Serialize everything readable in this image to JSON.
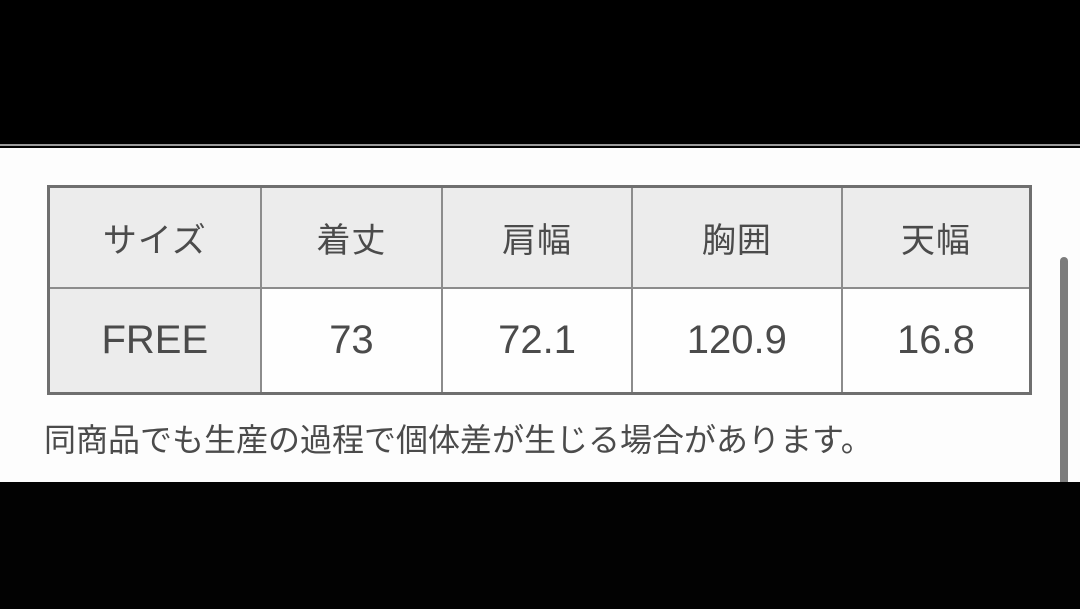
{
  "size_table": {
    "headers": [
      "サイズ",
      "着丈",
      "肩幅",
      "胸囲",
      "天幅"
    ],
    "rows": [
      [
        "FREE",
        "73",
        "72.1",
        "120.9",
        "16.8"
      ]
    ]
  },
  "note": {
    "text": "同商品でも生産の過程で個体差が生じる場合があります。"
  },
  "colors": {
    "letterbox": "#000000",
    "panel_background": "#fdfdfd",
    "header_cell_background": "#ececec",
    "table_border": "#8c8c8c",
    "table_outer_border": "#6f6f6f",
    "text": "#4b4b4b",
    "scrollbar": "#7c7c7c"
  }
}
